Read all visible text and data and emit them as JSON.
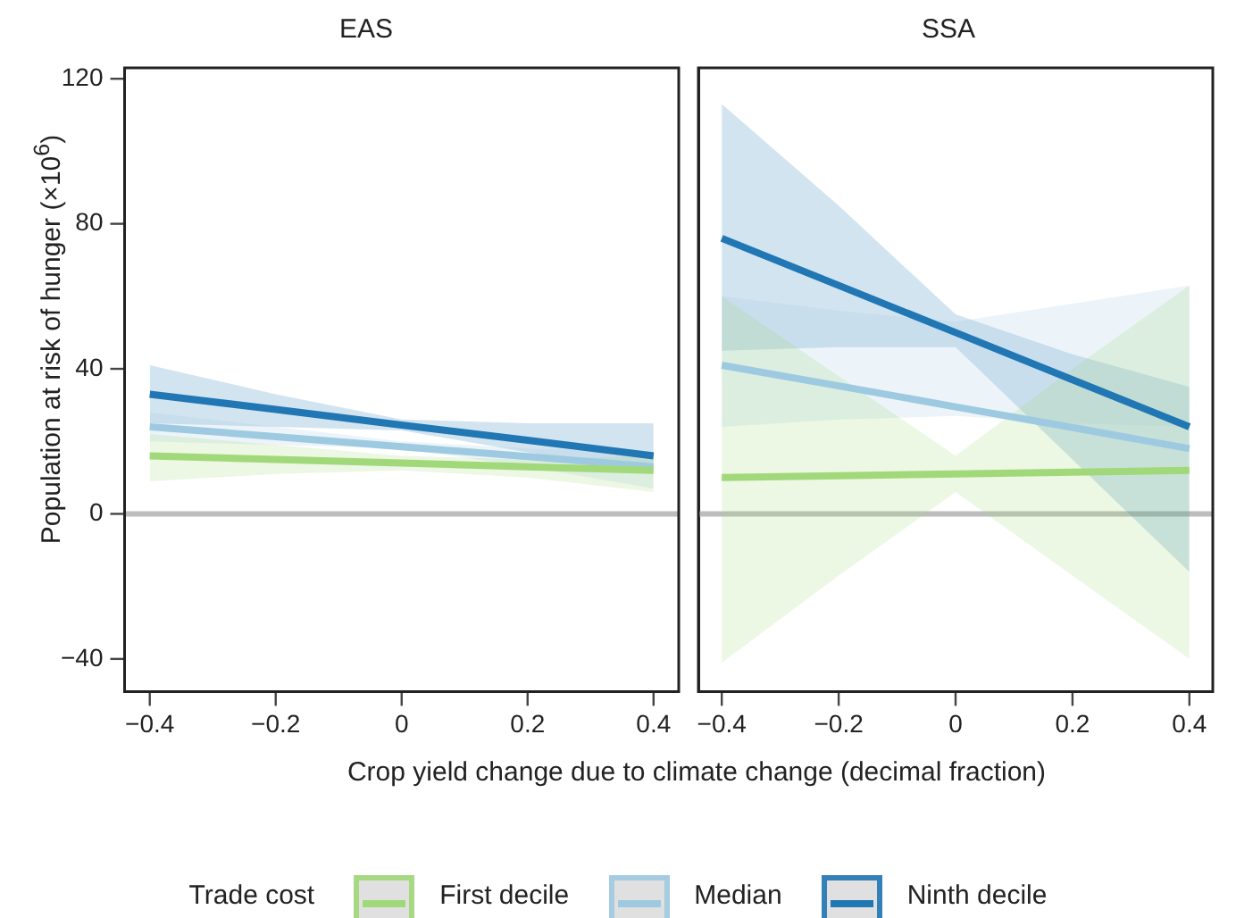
{
  "chart_data": [
    {
      "type": "line",
      "title": "EAS",
      "ylabel": "Population at risk of hunger (×10$^{6}$)",
      "xlabel": "Crop yield change due to climate change (decimal fraction)",
      "legend": "bottom",
      "legend_title": "Trade cost",
      "grid": false,
      "marker": "none",
      "line_style": "solid",
      "xlim": [
        -0.44,
        0.44
      ],
      "ylim": [
        -49,
        123
      ],
      "xticks": [
        -0.4,
        -0.2,
        0,
        0.2,
        0.4
      ],
      "yticks": [
        -40,
        0,
        40,
        80,
        120
      ],
      "ref_lines": [
        {
          "axis": "y",
          "value": 0,
          "color": "#bdbdbd"
        }
      ],
      "series": [
        {
          "name": "First decile",
          "color": "#a1d879",
          "x": [
            -0.4,
            -0.2,
            0,
            0.2,
            0.4
          ],
          "values": [
            16,
            15,
            14,
            13,
            12
          ],
          "lower": [
            9,
            11,
            12,
            10,
            6
          ],
          "upper": [
            22,
            19,
            16,
            15,
            16
          ]
        },
        {
          "name": "Median",
          "color": "#9ecae1",
          "x": [
            -0.4,
            -0.2,
            0,
            0.2,
            0.4
          ],
          "values": [
            24,
            21.3,
            18.5,
            15.8,
            13
          ],
          "lower": [
            20,
            19,
            18,
            13,
            7
          ],
          "upper": [
            28,
            24,
            20,
            18,
            17
          ]
        },
        {
          "name": "Ninth decile",
          "color": "#2077b4",
          "x": [
            -0.4,
            -0.2,
            0,
            0.2,
            0.4
          ],
          "values": [
            33,
            28.8,
            24.5,
            20.3,
            16
          ],
          "lower": [
            25,
            24,
            23,
            17,
            12
          ],
          "upper": [
            41,
            33,
            26,
            25,
            25
          ]
        }
      ]
    },
    {
      "type": "line",
      "title": "SSA",
      "tick_labels": "x",
      "grid": false,
      "marker": "none",
      "line_style": "solid",
      "xlim": [
        -0.44,
        0.44
      ],
      "ylim": [
        -49,
        123
      ],
      "xticks": [
        -0.4,
        -0.2,
        0,
        0.2,
        0.4
      ],
      "ref_lines": [
        {
          "axis": "y",
          "value": 0,
          "color": "#bdbdbd"
        }
      ],
      "series": [
        {
          "name": "First decile",
          "color": "#a1d879",
          "x": [
            -0.4,
            -0.2,
            0,
            0.2,
            0.4
          ],
          "values": [
            10,
            10.5,
            11,
            11.5,
            12
          ],
          "lower": [
            -41,
            -17,
            6,
            -17,
            -40
          ],
          "upper": [
            60,
            38,
            16,
            40,
            63
          ]
        },
        {
          "name": "Median",
          "color": "#9ecae1",
          "x": [
            -0.4,
            -0.2,
            0,
            0.2,
            0.4
          ],
          "values": [
            41,
            35.3,
            29.5,
            23.8,
            18
          ],
          "lower": [
            24,
            26,
            27,
            25,
            24
          ],
          "upper": [
            60,
            56,
            53,
            58,
            63
          ]
        },
        {
          "name": "Ninth decile",
          "color": "#2077b4",
          "x": [
            -0.4,
            -0.2,
            0,
            0.2,
            0.4
          ],
          "values": [
            76,
            63,
            50,
            37,
            24
          ],
          "lower": [
            45,
            46,
            46,
            15,
            -16
          ],
          "upper": [
            113,
            85,
            55,
            44,
            35
          ]
        }
      ]
    }
  ]
}
